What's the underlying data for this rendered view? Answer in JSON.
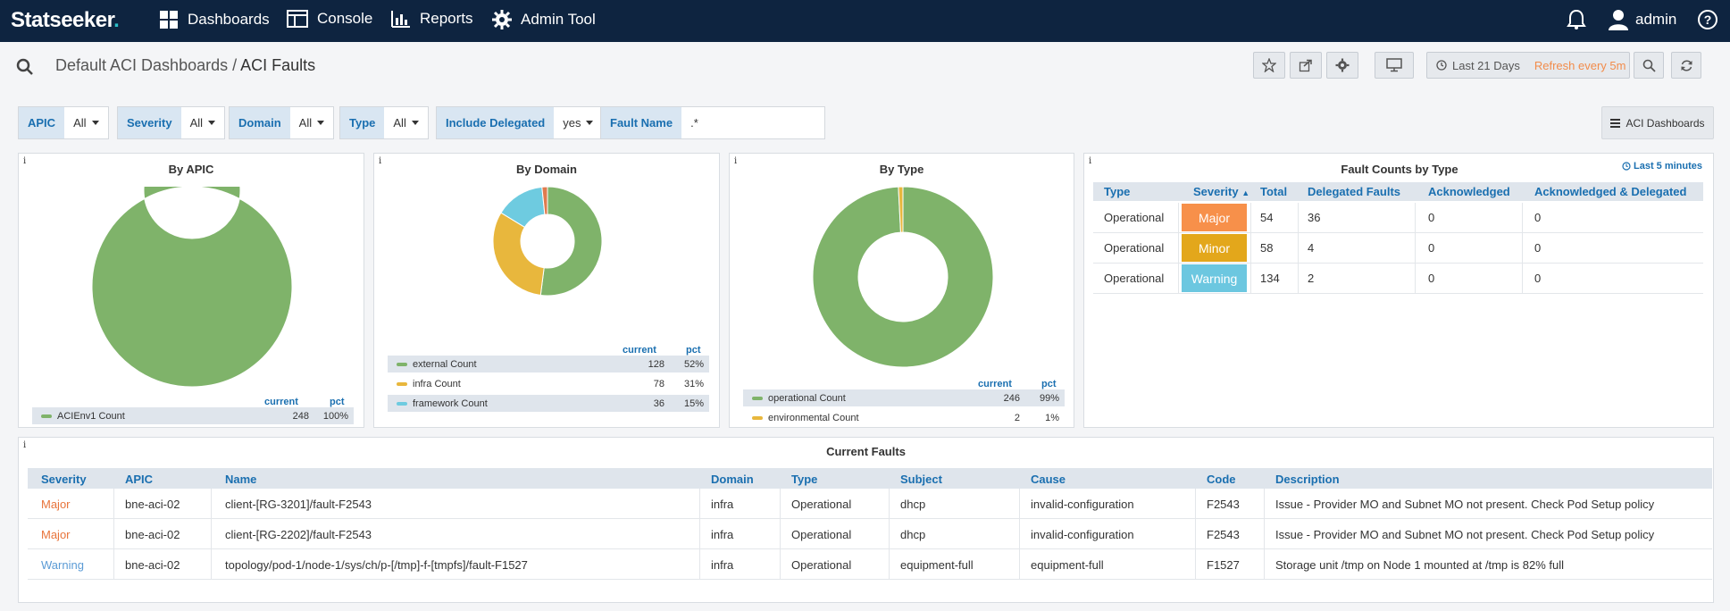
{
  "brand": {
    "name": "Statseeker",
    "dot": "."
  },
  "nav": {
    "dashboards": "Dashboards",
    "console": "Console",
    "reports": "Reports",
    "admin_tool": "Admin Tool",
    "user": "admin"
  },
  "breadcrumb": {
    "parent": "Default ACI Dashboards",
    "sep": " / ",
    "current": "ACI Faults"
  },
  "timerange": {
    "label": "Last 21 Days",
    "refresh": "Refresh every 5m"
  },
  "filters": {
    "apic": {
      "label": "APIC",
      "value": "All"
    },
    "severity": {
      "label": "Severity",
      "value": "All"
    },
    "domain": {
      "label": "Domain",
      "value": "All"
    },
    "type": {
      "label": "Type",
      "value": "All"
    },
    "delegated": {
      "label": "Include Delegated",
      "value": "yes"
    },
    "fault_name": {
      "label": "Fault Name",
      "value": ".*"
    },
    "aci_dashboards": "ACI Dashboards"
  },
  "info_glyph": "i",
  "by_apic": {
    "title": "By APIC",
    "col_current": "current",
    "col_pct": "pct",
    "rows": [
      {
        "label": "ACIEnv1 Count",
        "current": "248",
        "pct": "100%",
        "color": "#7fb36a",
        "value": 248
      }
    ]
  },
  "by_domain": {
    "title": "By Domain",
    "col_current": "current",
    "col_pct": "pct",
    "rows": [
      {
        "label": "external Count",
        "current": "128",
        "pct": "52%",
        "color": "#7fb36a",
        "value": 128
      },
      {
        "label": "infra Count",
        "current": "78",
        "pct": "31%",
        "color": "#e8b73d",
        "value": 78
      },
      {
        "label": "framework Count",
        "current": "36",
        "pct": "15%",
        "color": "#6ecbe0",
        "value": 36
      }
    ],
    "hidden_slice": {
      "color": "#e07b4e",
      "value": 4
    }
  },
  "by_type": {
    "title": "By Type",
    "col_current": "current",
    "col_pct": "pct",
    "rows": [
      {
        "label": "operational Count",
        "current": "246",
        "pct": "99%",
        "color": "#7fb36a",
        "value": 246
      },
      {
        "label": "environmental Count",
        "current": "2",
        "pct": "1%",
        "color": "#e8b73d",
        "value": 2
      }
    ]
  },
  "fault_counts": {
    "title": "Fault Counts by Type",
    "badge": "Last 5 minutes",
    "headers": {
      "type": "Type",
      "severity": "Severity",
      "total": "Total",
      "delegated": "Delegated Faults",
      "ack": "Acknowledged",
      "ack_del": "Acknowledged & Delegated"
    },
    "rows": [
      {
        "type": "Operational",
        "severity": "Major",
        "color": "#f7904a",
        "total": "54",
        "delegated": "36",
        "ack": "0",
        "ack_del": "0"
      },
      {
        "type": "Operational",
        "severity": "Minor",
        "color": "#e3a71b",
        "total": "58",
        "delegated": "4",
        "ack": "0",
        "ack_del": "0"
      },
      {
        "type": "Operational",
        "severity": "Warning",
        "color": "#6cc7e0",
        "total": "134",
        "delegated": "2",
        "ack": "0",
        "ack_del": "0"
      }
    ]
  },
  "current_faults": {
    "title": "Current Faults",
    "headers": {
      "severity": "Severity",
      "apic": "APIC",
      "name": "Name",
      "domain": "Domain",
      "type": "Type",
      "subject": "Subject",
      "cause": "Cause",
      "code": "Code",
      "description": "Description"
    },
    "rows": [
      {
        "severity": "Major",
        "sev_color": "#e8743b",
        "apic": "bne-aci-02",
        "name": "client-[RG-3201]/fault-F2543",
        "domain": "infra",
        "type": "Operational",
        "subject": "dhcp",
        "cause": "invalid-configuration",
        "code": "F2543",
        "description": "Issue - Provider MO and Subnet MO not present. Check Pod Setup policy"
      },
      {
        "severity": "Major",
        "sev_color": "#e8743b",
        "apic": "bne-aci-02",
        "name": "client-[RG-2202]/fault-F2543",
        "domain": "infra",
        "type": "Operational",
        "subject": "dhcp",
        "cause": "invalid-configuration",
        "code": "F2543",
        "description": "Issue - Provider MO and Subnet MO not present. Check Pod Setup policy"
      },
      {
        "severity": "Warning",
        "sev_color": "#5b9bd5",
        "apic": "bne-aci-02",
        "name": "topology/pod-1/node-1/sys/ch/p-[/tmp]-f-[tmpfs]/fault-F1527",
        "domain": "infra",
        "type": "Operational",
        "subject": "equipment-full",
        "cause": "equipment-full",
        "code": "F1527",
        "description": "Storage unit /tmp on Node 1 mounted at /tmp is 82% full"
      }
    ]
  }
}
